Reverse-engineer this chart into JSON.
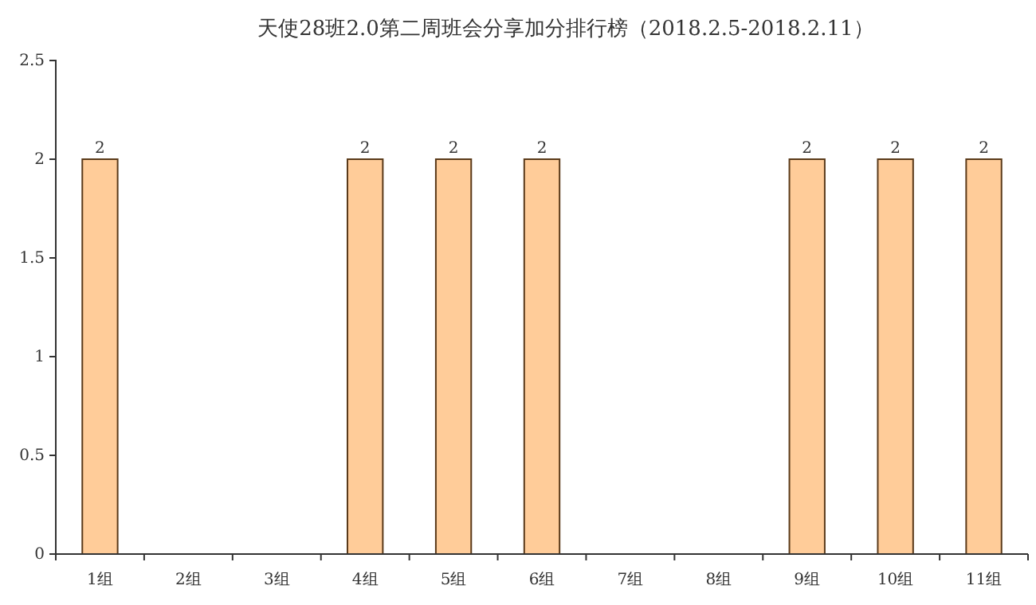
{
  "chart_data": {
    "type": "bar",
    "title": "天使28班2.0第二周班会分享加分排行榜（2018.2.5-2018.2.11）",
    "categories": [
      "1组",
      "2组",
      "3组",
      "4组",
      "5组",
      "6组",
      "7组",
      "8组",
      "9组",
      "10组",
      "11组"
    ],
    "values": [
      2,
      0,
      0,
      2,
      2,
      2,
      0,
      0,
      2,
      2,
      2
    ],
    "value_labels": [
      "2",
      null,
      null,
      "2",
      "2",
      "2",
      null,
      null,
      "2",
      "2",
      "2"
    ],
    "color": "#ffcc99",
    "ylim": [
      0,
      2.5
    ],
    "yticks": [
      0,
      0.5,
      1,
      1.5,
      2,
      2.5
    ],
    "grid": false
  }
}
